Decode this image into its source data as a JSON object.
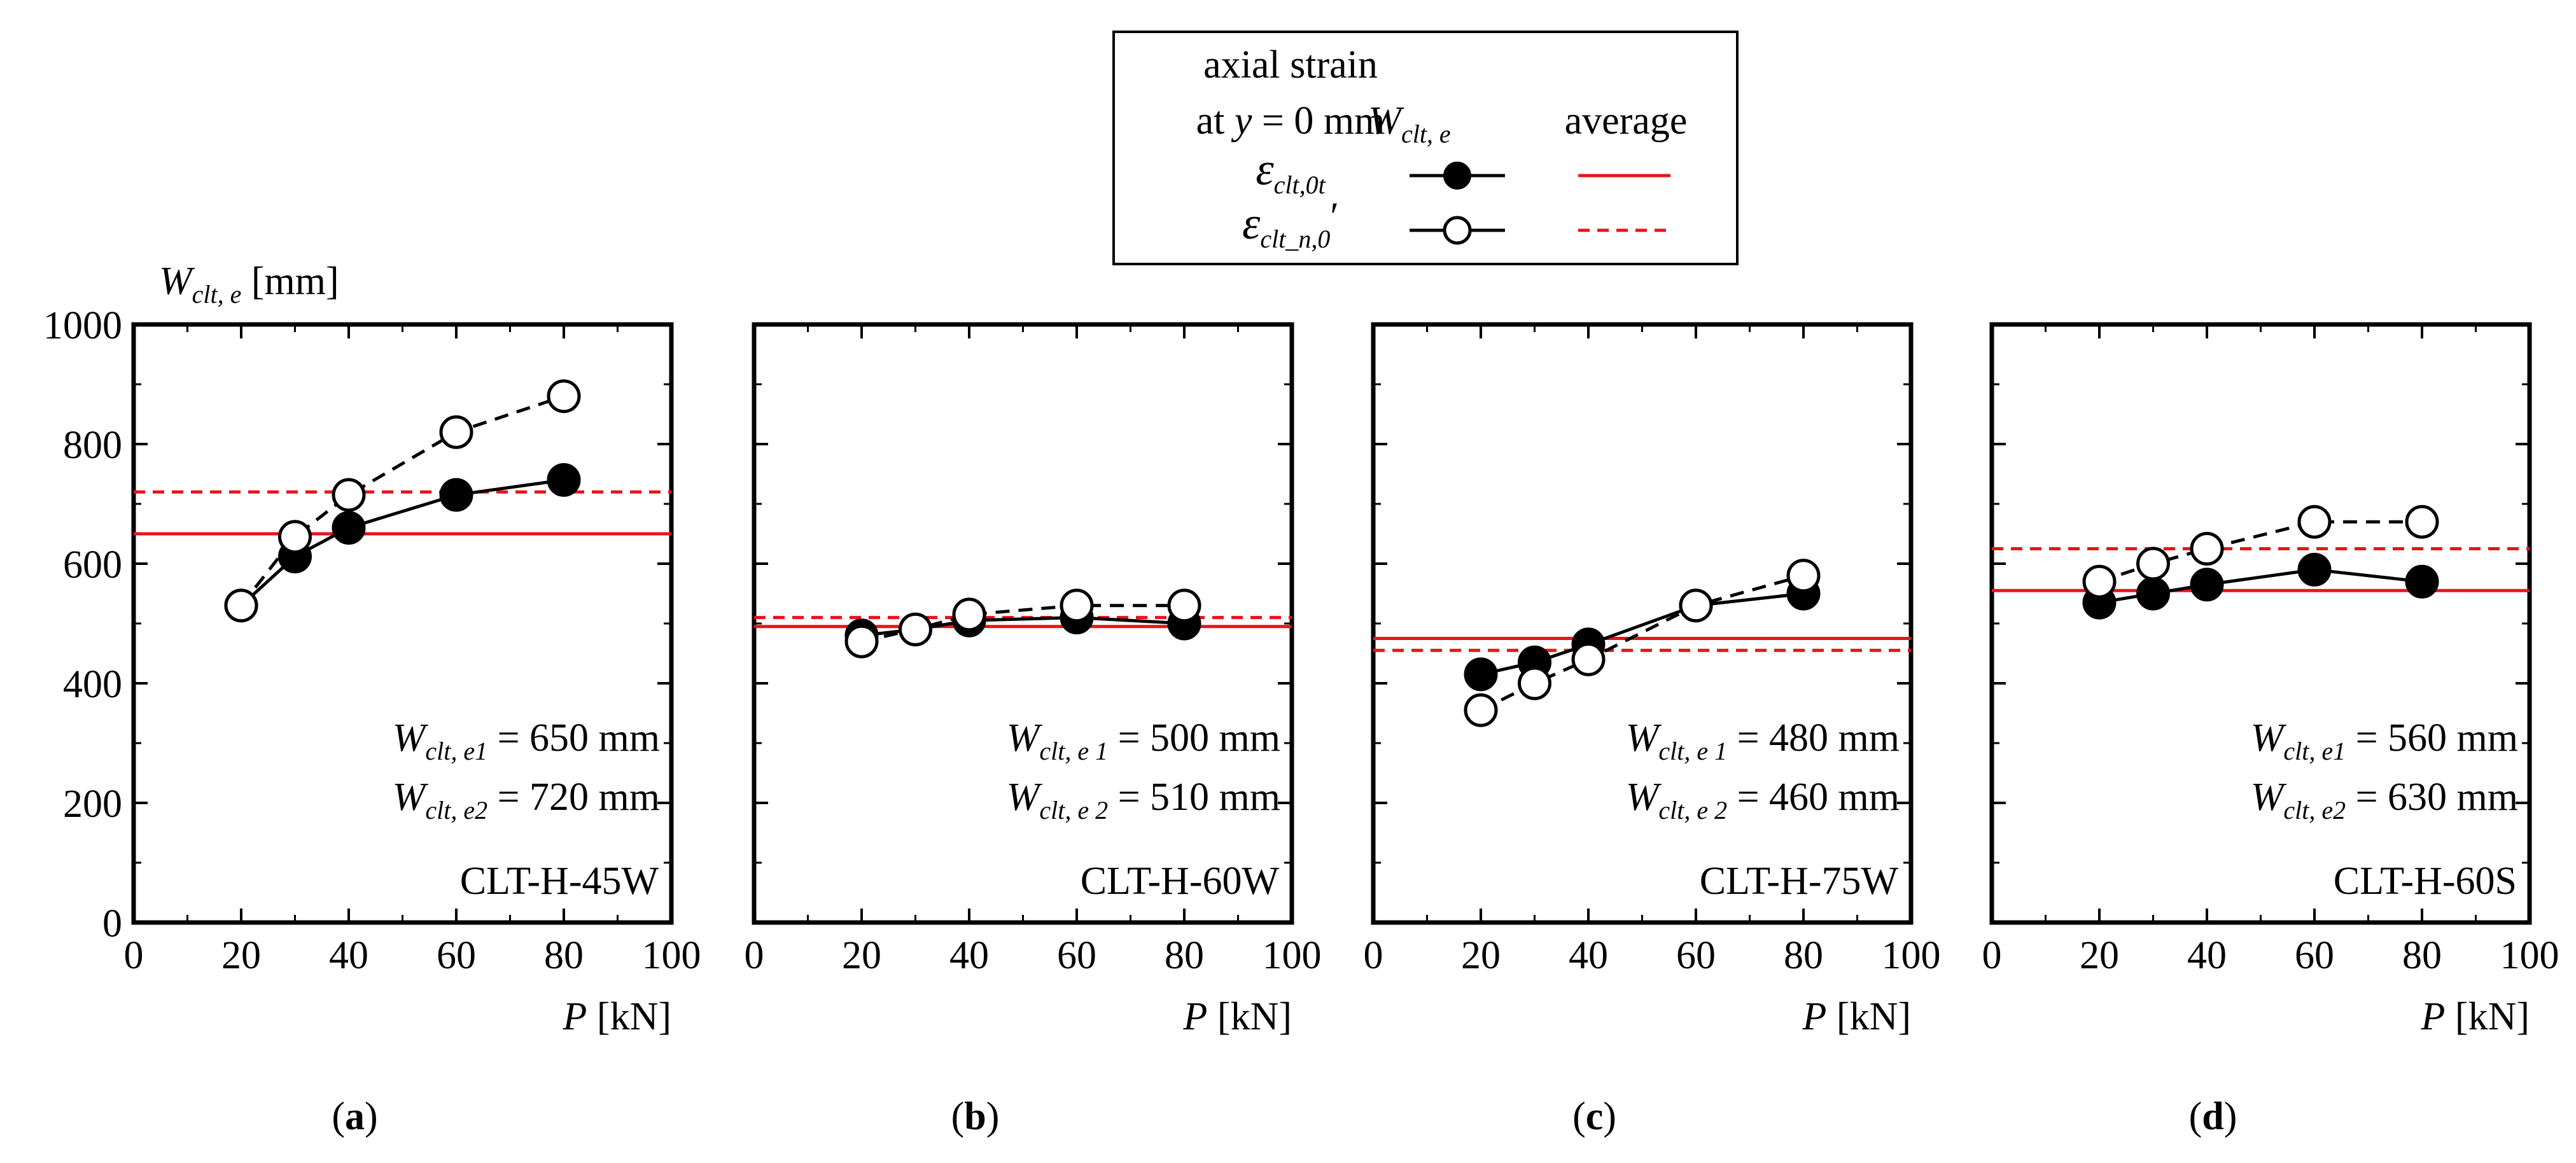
{
  "chart_data": [
    {
      "type": "line",
      "panel": "(a)",
      "panel_letter": "a",
      "specimen": "CLT-H-45W",
      "xlabel": "P [kN]",
      "ylabel": "Wclt, e [mm]",
      "xlim": [
        0,
        100
      ],
      "ylim": [
        0,
        1000
      ],
      "xticks": [
        0,
        20,
        40,
        60,
        80,
        100
      ],
      "yticks": [
        0,
        200,
        400,
        600,
        800,
        1000
      ],
      "series": [
        {
          "name": "εclt,0t Wclt,e",
          "marker": "filled-circle",
          "line": "solid",
          "x": [
            20,
            30,
            40,
            60,
            80
          ],
          "values": [
            530,
            612,
            660,
            715,
            740
          ]
        },
        {
          "name": "εclt_n,0′ Wclt,e",
          "marker": "open-circle",
          "line": "dashed",
          "x": [
            20,
            30,
            40,
            60,
            80
          ],
          "values": [
            530,
            645,
            715,
            820,
            880
          ]
        }
      ],
      "averages": [
        {
          "name": "εclt,0t average",
          "value": 650,
          "line": "solid"
        },
        {
          "name": "εclt_n,0′ average",
          "value": 720,
          "line": "dashed"
        }
      ],
      "annotations": {
        "line1": {
          "var": "W",
          "sub": "clt, e1",
          "rest": " = 650 mm"
        },
        "line2": {
          "var": "W",
          "sub": "clt, e2",
          "rest": " = 720 mm"
        }
      }
    },
    {
      "type": "line",
      "panel": "(b)",
      "panel_letter": "b",
      "specimen": "CLT-H-60W",
      "xlabel": "P [kN]",
      "xlim": [
        0,
        100
      ],
      "ylim": [
        0,
        1000
      ],
      "xticks": [
        0,
        20,
        40,
        60,
        80,
        100
      ],
      "series": [
        {
          "name": "εclt,0t Wclt,e",
          "marker": "filled-circle",
          "line": "solid",
          "x": [
            20,
            30,
            40,
            60,
            80
          ],
          "values": [
            480,
            490,
            505,
            510,
            500
          ]
        },
        {
          "name": "εclt_n,0′ Wclt,e",
          "marker": "open-circle",
          "line": "dashed",
          "x": [
            20,
            30,
            40,
            60,
            80
          ],
          "values": [
            470,
            490,
            515,
            530,
            530
          ]
        }
      ],
      "averages": [
        {
          "name": "εclt,0t average",
          "value": 495,
          "line": "solid"
        },
        {
          "name": "εclt_n,0′ average",
          "value": 510,
          "line": "dashed"
        }
      ],
      "annotations": {
        "line1": {
          "var": "W",
          "sub": "clt, e 1",
          "rest": " = 500 mm"
        },
        "line2": {
          "var": "W",
          "sub": "clt, e 2",
          "rest": " = 510 mm"
        }
      }
    },
    {
      "type": "line",
      "panel": "(c)",
      "panel_letter": "c",
      "specimen": "CLT-H-75W",
      "xlabel": "P [kN]",
      "xlim": [
        0,
        100
      ],
      "ylim": [
        0,
        1000
      ],
      "xticks": [
        0,
        20,
        40,
        60,
        80,
        100
      ],
      "series": [
        {
          "name": "εclt,0t Wclt,e",
          "marker": "filled-circle",
          "line": "solid",
          "x": [
            20,
            30,
            40,
            60,
            80
          ],
          "values": [
            415,
            435,
            465,
            530,
            550
          ]
        },
        {
          "name": "εclt_n,0′ Wclt,e",
          "marker": "open-circle",
          "line": "dashed",
          "x": [
            20,
            30,
            40,
            60,
            80
          ],
          "values": [
            355,
            400,
            440,
            530,
            580
          ]
        }
      ],
      "averages": [
        {
          "name": "εclt,0t average",
          "value": 475,
          "line": "solid"
        },
        {
          "name": "εclt_n,0′ average",
          "value": 455,
          "line": "dashed"
        }
      ],
      "annotations": {
        "line1": {
          "var": "W",
          "sub": "clt, e 1",
          "rest": " = 480 mm"
        },
        "line2": {
          "var": "W",
          "sub": "clt, e 2",
          "rest": " = 460 mm"
        }
      }
    },
    {
      "type": "line",
      "panel": "(d)",
      "panel_letter": "d",
      "specimen": "CLT-H-60S",
      "xlabel": "P [kN]",
      "xlim": [
        0,
        100
      ],
      "ylim": [
        0,
        1000
      ],
      "xticks": [
        0,
        20,
        40,
        60,
        80,
        100
      ],
      "series": [
        {
          "name": "εclt,0t Wclt,e",
          "marker": "filled-circle",
          "line": "solid",
          "x": [
            20,
            30,
            40,
            60,
            80
          ],
          "values": [
            535,
            550,
            565,
            590,
            570
          ]
        },
        {
          "name": "εclt_n,0′ Wclt,e",
          "marker": "open-circle",
          "line": "dashed",
          "x": [
            20,
            30,
            40,
            60,
            80
          ],
          "values": [
            570,
            600,
            625,
            670,
            670
          ]
        }
      ],
      "averages": [
        {
          "name": "εclt,0t average",
          "value": 555,
          "line": "solid"
        },
        {
          "name": "εclt_n,0′ average",
          "value": 625,
          "line": "dashed"
        }
      ],
      "annotations": {
        "line1": {
          "var": "W",
          "sub": "clt, e1",
          "rest": " = 560 mm"
        },
        "line2": {
          "var": "W",
          "sub": "clt, e2",
          "rest": " = 630 mm"
        }
      }
    }
  ],
  "y_axis_title": {
    "var": "W",
    "sub": "clt, e",
    "unit": " [mm]"
  },
  "x_axis_title": {
    "var": "P",
    "unit": " [kN]"
  },
  "legend": {
    "header_line1": "axial strain",
    "header_line2_prefix": "at ",
    "header_line2_var": "y",
    "header_line2_suffix": " = 0 mm",
    "col1_var": "W",
    "col1_sub": "clt, e",
    "col2": "average",
    "row1_var": "ε",
    "row1_sub": "clt,0t",
    "row2_var": "ε",
    "row2_sub": "clt_n,0",
    "row2_prime": "′"
  },
  "colors": {
    "average_line": "#e8141b",
    "axis": "#000000",
    "marker": "#000000"
  }
}
